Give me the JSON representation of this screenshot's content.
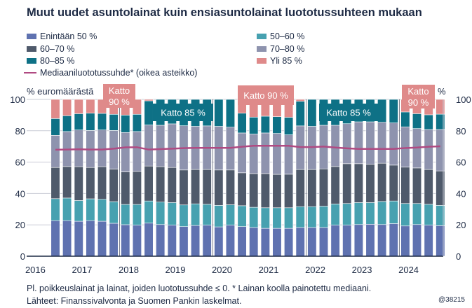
{
  "chart_data": {
    "type": "bar",
    "stacked": true,
    "title": "Muut uudet asuntolainat kuin ensiasuntolainat luototussuhteen mukaan",
    "ylabel_left": "% euromäärästä",
    "ylabel_right": "%",
    "ylim": [
      0,
      100
    ],
    "yticks": [
      0,
      20,
      40,
      60,
      80,
      100
    ],
    "grid": true,
    "x_period": "2016Q3–2024Q4 (quarterly)",
    "year_labels": [
      "2016",
      "2017",
      "2018",
      "2019",
      "2020",
      "2021",
      "2022",
      "2023",
      "2024"
    ],
    "legend_position": "top",
    "series": [
      {
        "name": "Enintään 50 %",
        "color": "#5f72b0",
        "values": [
          22.7,
          22.7,
          22.3,
          22.7,
          22.3,
          21.0,
          20.1,
          19.8,
          21.1,
          20.2,
          19.8,
          18.9,
          19.6,
          19.8,
          18.7,
          19.8,
          18.9,
          18.3,
          17.8,
          17.8,
          17.8,
          18.3,
          18.3,
          18.3,
          19.8,
          19.8,
          20.2,
          20.4,
          20.2,
          20.8,
          19.3,
          20.2,
          19.8,
          19.5
        ]
      },
      {
        "name": "50–60 %",
        "color": "#47a1b0",
        "values": [
          14.0,
          14.4,
          13.2,
          13.9,
          14.0,
          13.8,
          12.9,
          13.2,
          14.1,
          14.3,
          14.4,
          13.8,
          13.8,
          13.3,
          13.7,
          13.0,
          13.3,
          12.9,
          13.1,
          13.1,
          13.1,
          13.3,
          13.3,
          13.6,
          13.5,
          13.8,
          14.0,
          13.8,
          14.7,
          14.4,
          14.3,
          13.4,
          13.3,
          12.9
        ]
      },
      {
        "name": "60–70 %",
        "color": "#4f5a6b",
        "values": [
          19.9,
          20.1,
          21.6,
          20.0,
          20.8,
          20.8,
          20.8,
          21.1,
          22.3,
          22.6,
          22.4,
          22.3,
          21.9,
          22.2,
          22.6,
          22.2,
          21.0,
          21.5,
          21.8,
          21.3,
          21.4,
          23.7,
          23.7,
          23.8,
          23.9,
          25.4,
          24.8,
          24.5,
          24.4,
          22.9,
          23.2,
          22.7,
          22.2,
          22.0
        ]
      },
      {
        "name": "70–80 %",
        "color": "#8e93ae",
        "values": [
          20.5,
          22.3,
          23.4,
          23.6,
          23.4,
          24.6,
          25.1,
          25.4,
          26.2,
          26.4,
          27.8,
          28.2,
          27.5,
          27.8,
          27.8,
          27.3,
          25.4,
          25.2,
          25.9,
          26.1,
          25.1,
          27.8,
          27.5,
          27.8,
          26.3,
          25.5,
          26.7,
          27.0,
          26.1,
          26.9,
          25.7,
          25.1,
          25.5,
          26.4
        ]
      },
      {
        "name": "80–85 %",
        "color": "#0e7186",
        "values": [
          10.7,
          10.1,
          10.4,
          11.0,
          10.6,
          10.3,
          11.1,
          11.0,
          15.4,
          16.5,
          15.6,
          16.8,
          17.2,
          16.9,
          17.2,
          17.7,
          12.6,
          10.8,
          10.7,
          10.7,
          11.2,
          15.7,
          17.2,
          16.5,
          16.5,
          15.5,
          14.3,
          14.3,
          14.6,
          15.0,
          9.5,
          9.5,
          9.4,
          9.8
        ]
      },
      {
        "name": "Yli 85 %",
        "color": "#df8a8a",
        "values": [
          12.2,
          10.4,
          9.1,
          8.8,
          8.9,
          9.5,
          10.0,
          9.5,
          0.9,
          0,
          0,
          0,
          0,
          0,
          0,
          0,
          8.8,
          11.3,
          10.7,
          11.0,
          11.4,
          1.2,
          0,
          0,
          0,
          0,
          0,
          0,
          0,
          0,
          8.0,
          9.1,
          9.8,
          9.4
        ]
      }
    ],
    "line_series": {
      "name": "Mediaaniluototussuhde* (oikea asteikko)",
      "color": "#b04a82",
      "axis": "right",
      "values": [
        67.9,
        68.0,
        68.2,
        68.0,
        68.0,
        68.6,
        69.4,
        69.5,
        68.0,
        68.3,
        68.6,
        68.9,
        69.1,
        69.1,
        69.1,
        69.1,
        69.8,
        70.4,
        70.4,
        70.4,
        70.4,
        69.6,
        69.6,
        69.9,
        69.3,
        68.8,
        68.4,
        68.4,
        68.4,
        68.4,
        69.0,
        69.3,
        69.8,
        70.1
      ]
    },
    "annotations": [
      {
        "text": [
          "Katto",
          "90 %"
        ],
        "color": "#df8a8a"
      },
      {
        "text": [
          "Katto 85 %"
        ],
        "color": "#0e7186"
      },
      {
        "text": [
          "Katto 90 %"
        ],
        "color": "#df8a8a"
      },
      {
        "text": [
          "Katto 85 %"
        ],
        "color": "#0e7186"
      },
      {
        "text": [
          "Katto",
          "90 %"
        ],
        "color": "#df8a8a"
      }
    ]
  },
  "footer": {
    "note": "Pl. poikkeuslainat ja lainat, joiden luototussuhde ≤ 0. * Lainan koolla painotettu mediaani.",
    "source": "Lähteet: Finanssivalvonta ja Suomen Pankin laskelmat.",
    "code": "@38215"
  }
}
